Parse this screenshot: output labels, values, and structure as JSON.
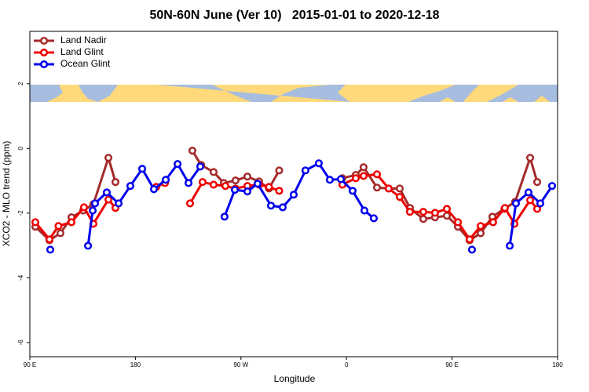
{
  "chart_data": {
    "type": "line",
    "title": "50N-60N June (Ver 10)   2015-01-01 to 2020-12-18",
    "x_label": "Longitude",
    "y_label": "XCO2 - MLO trend (ppm)",
    "xlim": [
      90,
      540
    ],
    "ylim": [
      -6.44,
      3.62
    ],
    "xticks": [
      {
        "value": 90,
        "label": "90 E"
      },
      {
        "value": 180,
        "label": "180"
      },
      {
        "value": 270,
        "label": "90 W"
      },
      {
        "value": 360,
        "label": "0"
      },
      {
        "value": 450,
        "label": "90 E"
      },
      {
        "value": 540,
        "label": "180"
      }
    ],
    "yticks": [
      2,
      0,
      -2,
      -4,
      -6
    ],
    "legend": "top-left",
    "series": [
      {
        "name": "Land Nadir",
        "color": "#a52a2a",
        "x": [
          94.7,
          106.7,
          116.1,
          125.5,
          135.5,
          144.2,
          157,
          163,
          null,
          228.6,
          236,
          246.7,
          255.4,
          265.4,
          275.5,
          285.5,
          293.9,
          302.6,
          null,
          356.5,
          367.9,
          374.6,
          386,
          396,
          405.4,
          414.1,
          425.5,
          435.5,
          445.6,
          455,
          465,
          474.4,
          484.4,
          494.6,
          503.8,
          516.6,
          522.6
        ],
        "values": [
          -2.42,
          -2.84,
          -2.62,
          -2.13,
          -1.92,
          -1.72,
          -0.29,
          -1.04,
          null,
          -0.07,
          -0.51,
          -0.73,
          -1.07,
          -0.99,
          -0.87,
          -1.02,
          -1.24,
          -0.68,
          null,
          -0.92,
          -0.82,
          -0.58,
          -1.21,
          -1.24,
          -1.24,
          -1.84,
          -2.18,
          -2.13,
          -2.08,
          -2.42,
          -2.84,
          -2.62,
          -2.11,
          -1.87,
          -1.65,
          -0.29,
          -1.04
        ]
      },
      {
        "name": "Land Glint",
        "color": "#ee0000",
        "x": [
          94.7,
          106.7,
          114.4,
          125.5,
          136.2,
          144.2,
          157,
          163,
          null,
          197.8,
          205.2,
          null,
          226.6,
          237.3,
          246.7,
          256.7,
          265.4,
          275.5,
          285.5,
          293.9,
          302.6,
          null,
          356.5,
          367.9,
          374.6,
          386,
          396,
          405.4,
          414.1,
          425.5,
          435.5,
          445.6,
          455,
          465,
          474.4,
          485,
          495.1,
          503.2,
          516.6,
          522.6
        ],
        "values": [
          -2.28,
          -2.81,
          -2.4,
          -2.28,
          -1.82,
          -2.33,
          -1.58,
          -1.84,
          null,
          -1.19,
          -1.07,
          null,
          -1.7,
          -1.04,
          -1.12,
          -1.16,
          -1.24,
          -1.16,
          -1.12,
          -1.19,
          -1.31,
          null,
          -1.12,
          -0.92,
          -0.85,
          -0.8,
          -1.24,
          -1.5,
          -1.96,
          -1.96,
          -1.99,
          -1.87,
          -2.28,
          -2.81,
          -2.4,
          -2.28,
          -1.84,
          -2.33,
          -1.6,
          -1.87
        ]
      },
      {
        "name": "Ocean Glint",
        "color": "#0000ee",
        "x": [
          107.4,
          null,
          139.6,
          143.6,
          145.6,
          155.6,
          165.7,
          175.7,
          185.8,
          195.8,
          205.9,
          216,
          225.3,
          235.3,
          null,
          256,
          264.8,
          275.5,
          284.2,
          295.6,
          305.6,
          315,
          325,
          336.4,
          345.8,
          355.2,
          365.2,
          375.3,
          383.3,
          null,
          467,
          null,
          499.2,
          504.5,
          515.2,
          525.3,
          535.3
        ],
        "values": [
          -3.13,
          null,
          -3.01,
          -1.92,
          -1.7,
          -1.36,
          -1.7,
          -1.16,
          -0.63,
          -1.26,
          -0.97,
          -0.48,
          -1.07,
          -0.56,
          null,
          -2.11,
          -1.28,
          -1.33,
          -1.09,
          -1.77,
          -1.82,
          -1.43,
          -0.68,
          -0.46,
          -0.97,
          -0.95,
          -1.31,
          -1.92,
          -2.16,
          null,
          -3.13,
          null,
          -3.01,
          -1.7,
          -1.36,
          -1.7,
          -1.16
        ]
      }
    ]
  }
}
